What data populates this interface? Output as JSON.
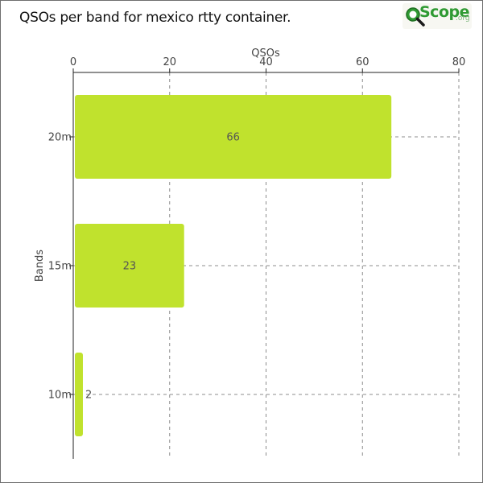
{
  "header": {
    "title": "QSOs per band for mexico rtty container.",
    "logo_text": "Scope",
    "logo_suffix": ".org"
  },
  "colors": {
    "bar": "#c0e22d",
    "grid": "#8c8c8c",
    "axis": "#222222",
    "logo_green": "#2f9a33"
  },
  "icons": {
    "logo": "magnifier-q-logo-icon"
  },
  "chart_data": {
    "type": "bar",
    "orientation": "horizontal",
    "title": "QSOs per band for mexico rtty container.",
    "xlabel": "QSOs",
    "ylabel": "Bands",
    "categories": [
      "20m",
      "15m",
      "10m"
    ],
    "values": [
      66,
      23,
      2
    ],
    "data_labels": [
      "66",
      "23",
      "2"
    ],
    "xlim": [
      0,
      80
    ],
    "xticks": [
      0,
      20,
      40,
      60,
      80
    ],
    "x_axis_position": "top",
    "grid": true,
    "legend": "none"
  }
}
